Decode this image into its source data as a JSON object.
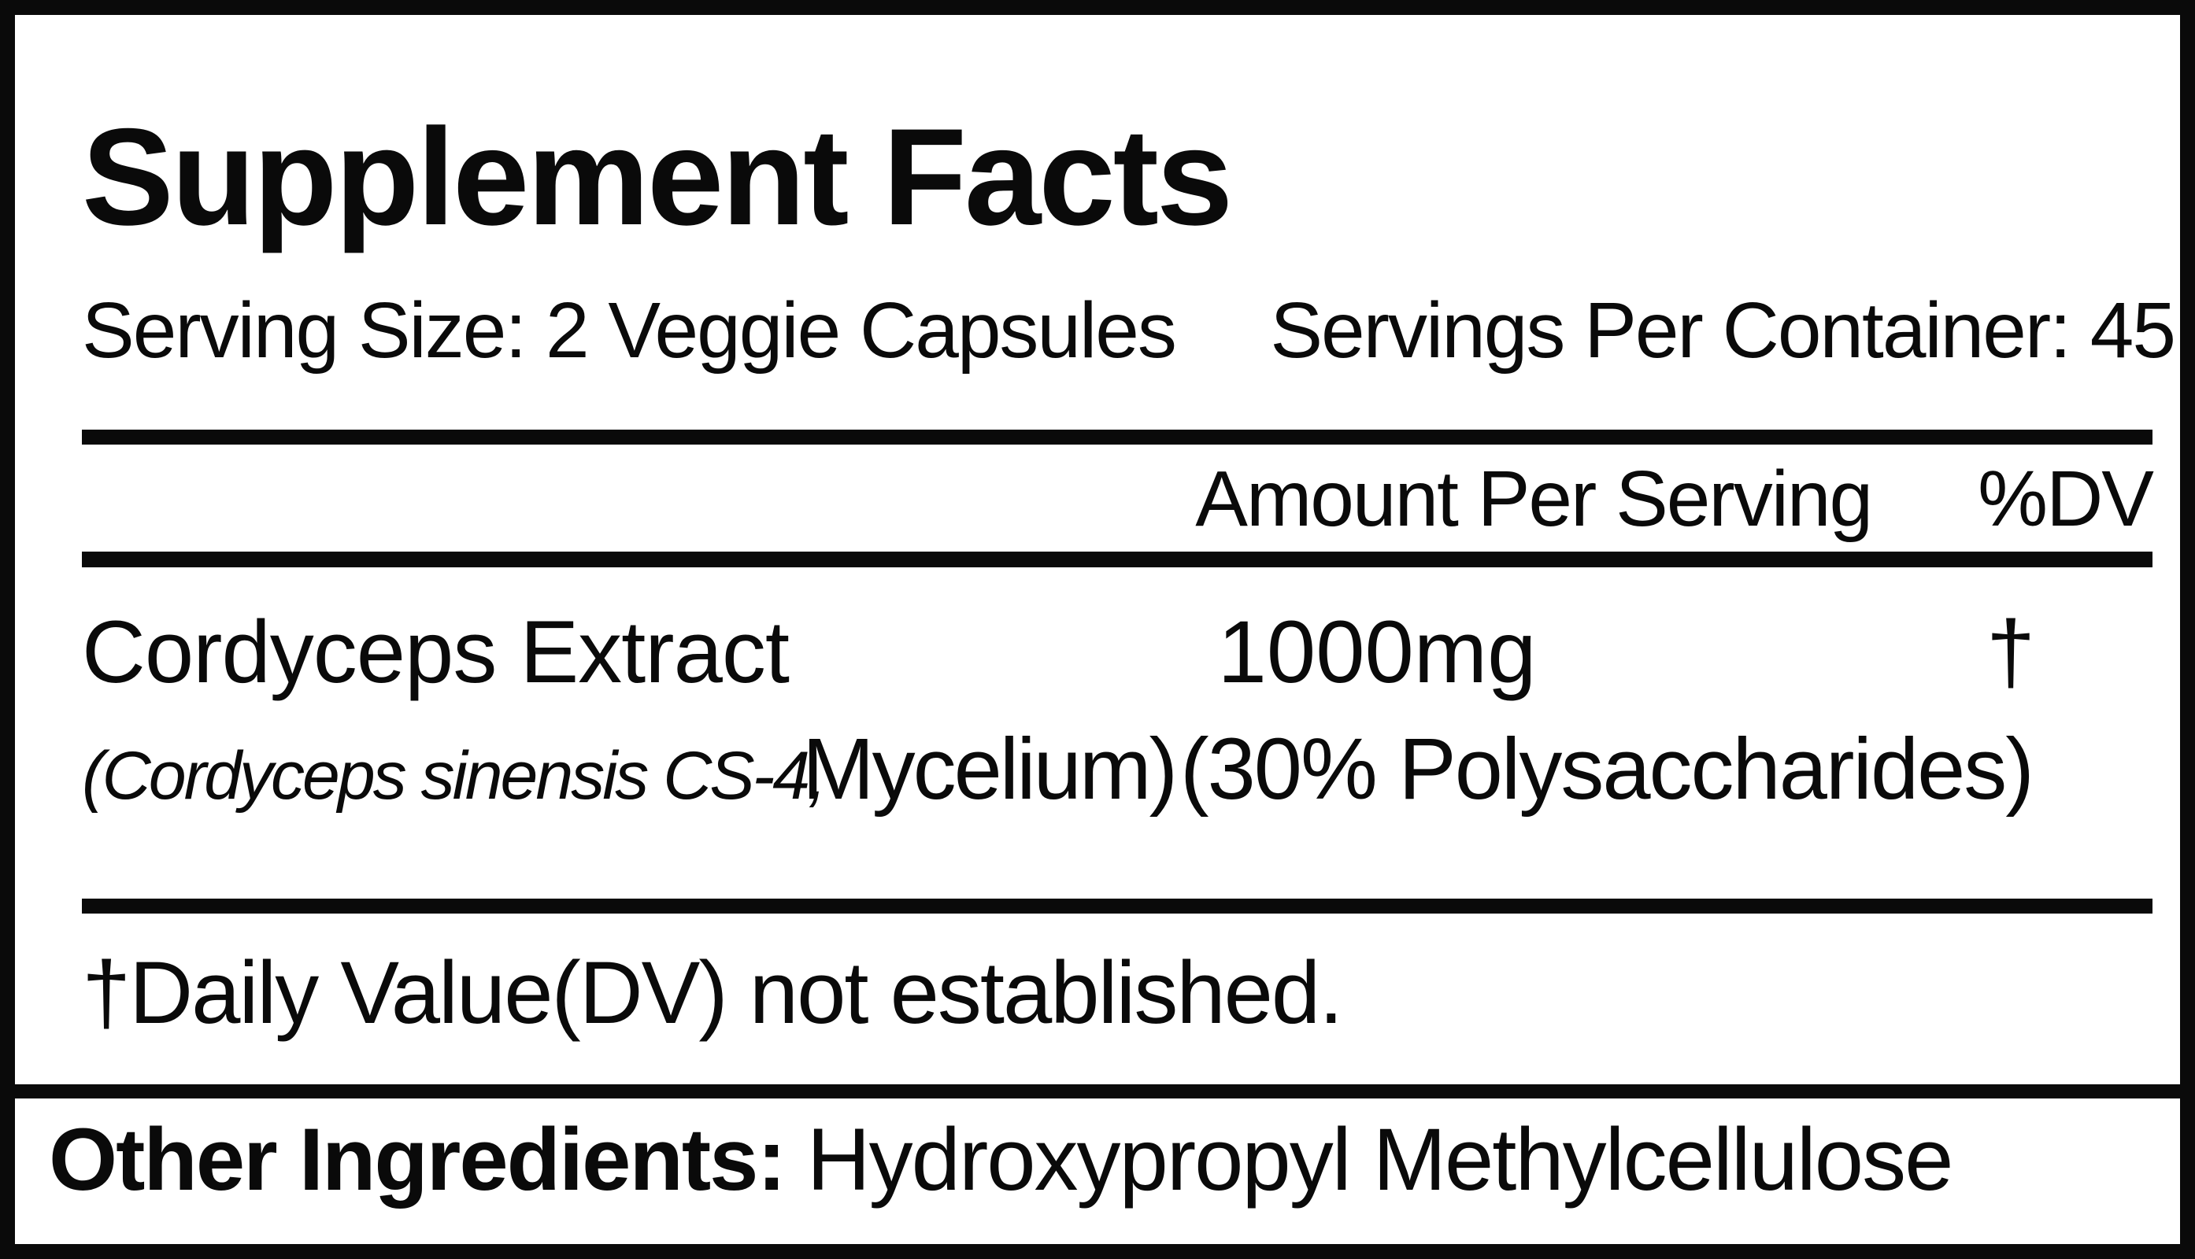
{
  "label": {
    "title": "Supplement Facts",
    "serving_size": "Serving Size: 2 Veggie Capsules",
    "servings_per_container": "Servings Per Container: 45",
    "columns": {
      "amount": "Amount Per Serving",
      "dv": "%DV"
    },
    "rows": [
      {
        "name": "Cordyceps Extract",
        "name_detail_italic": "(Cordyceps sinensis CS-4,",
        "name_detail": "Mycelium)",
        "name_detail2": "(30% Polysaccharides)",
        "amount": "1000mg",
        "dv": "†"
      }
    ],
    "footnote": "†Daily Value(DV) not established.",
    "other_ingredients_label": "Other Ingredients:",
    "other_ingredients_value": "Hydroxypropyl Methylcellulose",
    "colors": {
      "ink": "#0a0a0a",
      "background": "#ffffff"
    }
  }
}
